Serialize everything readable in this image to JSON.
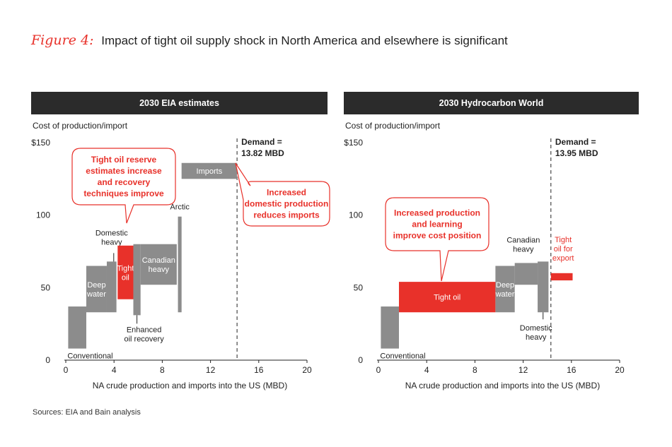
{
  "figure": {
    "label": "Figure 4:",
    "title": "Impact of tight oil supply shock in North America and elsewhere is significant"
  },
  "sources": "Sources: EIA and Bain analysis",
  "colors": {
    "gray": "#8c8c8c",
    "red": "#e8312a",
    "header": "#2b2b2b"
  },
  "chart_data": [
    {
      "type": "bar",
      "title": "2030 EIA estimates",
      "ylabel": "Cost of production/import",
      "xlabel": "NA crude production and imports into the US (MBD)",
      "xlim": [
        0,
        20
      ],
      "ylim": [
        0,
        150
      ],
      "xticks": [
        "0",
        "4",
        "8",
        "12",
        "16",
        "20"
      ],
      "yticks": [
        "0",
        "50",
        "100",
        "$150"
      ],
      "demand": {
        "x": 14.2,
        "label_line1": "Demand =",
        "label_line2": "13.82 MBD"
      },
      "segments": [
        {
          "name": "Conventional",
          "x0": 0.2,
          "x1": 1.7,
          "y0": 8,
          "y1": 37,
          "color": "gray",
          "label_pos": "below"
        },
        {
          "name": "Deep water",
          "x0": 1.7,
          "x1": 3.4,
          "y0": 33,
          "y1": 65,
          "color": "gray",
          "label_pos": "inside"
        },
        {
          "name": "Domestic heavy",
          "x0": 3.4,
          "x1": 4.2,
          "y0": 33,
          "y1": 68,
          "color": "gray",
          "label_pos": "above"
        },
        {
          "name": "Tight oil",
          "x0": 4.3,
          "x1": 5.6,
          "y0": 42,
          "y1": 79,
          "color": "red",
          "label_pos": "inside"
        },
        {
          "name": "Enhanced oil recovery",
          "x0": 5.6,
          "x1": 6.2,
          "y0": 31,
          "y1": 80,
          "color": "gray",
          "label_pos": "below"
        },
        {
          "name": "Canadian heavy",
          "x0": 6.2,
          "x1": 9.2,
          "y0": 52,
          "y1": 80,
          "color": "gray",
          "label_pos": "inside"
        },
        {
          "name": "Arctic",
          "x0": 9.3,
          "x1": 9.6,
          "y0": 33,
          "y1": 99,
          "color": "gray",
          "label_pos": "above"
        },
        {
          "name": "Imports",
          "x0": 9.6,
          "x1": 14.2,
          "y0": 125,
          "y1": 136,
          "color": "gray",
          "label_pos": "inside"
        }
      ],
      "callouts": [
        {
          "text": [
            "Tight oil reserve",
            "estimates increase",
            "and recovery",
            "techniques improve"
          ]
        },
        {
          "text": [
            "Increased",
            "domestic production",
            "reduces imports"
          ]
        }
      ]
    },
    {
      "type": "bar",
      "title": "2030 Hydrocarbon World",
      "ylabel": "Cost of production/import",
      "xlabel": "NA crude production and imports into the US (MBD)",
      "xlim": [
        0,
        20
      ],
      "ylim": [
        0,
        150
      ],
      "xticks": [
        "0",
        "4",
        "8",
        "12",
        "16",
        "20"
      ],
      "yticks": [
        "0",
        "50",
        "100",
        "$150"
      ],
      "demand": {
        "x": 14.3,
        "label_line1": "Demand =",
        "label_line2": "13.95 MBD"
      },
      "segments": [
        {
          "name": "Conventional",
          "x0": 0.2,
          "x1": 1.7,
          "y0": 8,
          "y1": 37,
          "color": "gray",
          "label_pos": "below"
        },
        {
          "name": "Tight oil",
          "x0": 1.7,
          "x1": 9.7,
          "y0": 33,
          "y1": 54,
          "color": "red",
          "label_pos": "inside"
        },
        {
          "name": "Deep water",
          "x0": 9.7,
          "x1": 11.3,
          "y0": 33,
          "y1": 65,
          "color": "gray",
          "label_pos": "inside"
        },
        {
          "name": "Canadian heavy",
          "x0": 11.3,
          "x1": 13.2,
          "y0": 52,
          "y1": 67,
          "color": "gray",
          "label_pos": "above"
        },
        {
          "name": "Domestic heavy",
          "x0": 13.2,
          "x1": 14.1,
          "y0": 33,
          "y1": 68,
          "color": "gray",
          "label_pos": "below"
        },
        {
          "name": "Tight oil for export",
          "x0": 14.3,
          "x1": 16.1,
          "y0": 55,
          "y1": 60,
          "color": "red",
          "label_pos": "above"
        }
      ],
      "callouts": [
        {
          "text": [
            "Increased production",
            "and learning",
            "improve cost position"
          ]
        }
      ]
    }
  ]
}
